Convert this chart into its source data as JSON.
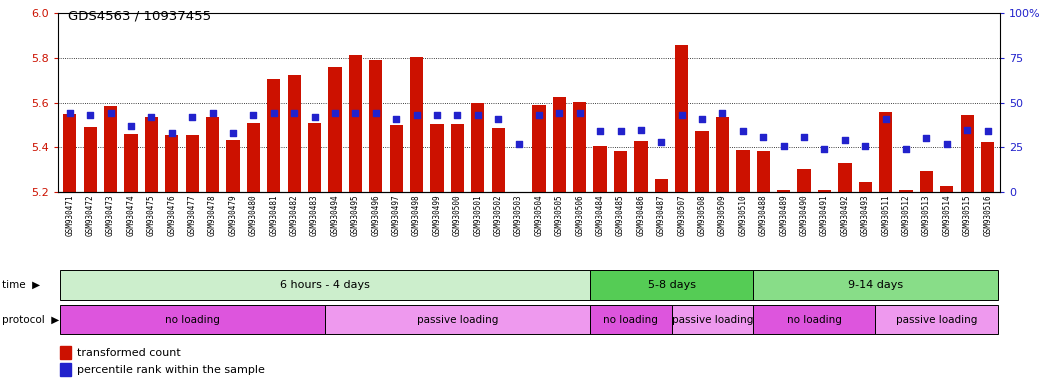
{
  "title": "GDS4563 / 10937455",
  "ylim_left": [
    5.2,
    6.0
  ],
  "ylim_right": [
    0,
    100
  ],
  "yticks_left": [
    5.2,
    5.4,
    5.6,
    5.8,
    6.0
  ],
  "yticks_right": [
    0,
    25,
    50,
    75,
    100
  ],
  "ybaseline": 5.2,
  "bar_color": "#CC1100",
  "dot_color": "#2222CC",
  "samples": [
    "GSM930471",
    "GSM930472",
    "GSM930473",
    "GSM930474",
    "GSM930475",
    "GSM930476",
    "GSM930477",
    "GSM930478",
    "GSM930479",
    "GSM930480",
    "GSM930481",
    "GSM930482",
    "GSM930483",
    "GSM930494",
    "GSM930495",
    "GSM930496",
    "GSM930497",
    "GSM930498",
    "GSM930499",
    "GSM930500",
    "GSM930501",
    "GSM930502",
    "GSM930503",
    "GSM930504",
    "GSM930505",
    "GSM930506",
    "GSM930484",
    "GSM930485",
    "GSM930486",
    "GSM930487",
    "GSM930507",
    "GSM930508",
    "GSM930509",
    "GSM930510",
    "GSM930488",
    "GSM930489",
    "GSM930490",
    "GSM930491",
    "GSM930492",
    "GSM930493",
    "GSM930511",
    "GSM930512",
    "GSM930513",
    "GSM930514",
    "GSM930515",
    "GSM930516"
  ],
  "bar_values": [
    5.55,
    5.49,
    5.585,
    5.46,
    5.535,
    5.455,
    5.455,
    5.535,
    5.435,
    5.51,
    5.705,
    5.725,
    5.51,
    5.76,
    5.815,
    5.79,
    5.5,
    5.805,
    5.505,
    5.505,
    5.6,
    5.485,
    5.2,
    5.59,
    5.625,
    5.605,
    5.405,
    5.385,
    5.43,
    5.26,
    5.86,
    5.475,
    5.535,
    5.39,
    5.385,
    5.21,
    5.305,
    5.21,
    5.33,
    5.245,
    5.56,
    5.21,
    5.295,
    5.225,
    5.545,
    5.425
  ],
  "percentile_values": [
    44,
    43,
    44,
    37,
    42,
    33,
    42,
    44,
    33,
    43,
    44,
    44,
    42,
    44,
    44,
    44,
    41,
    43,
    43,
    43,
    43,
    41,
    27,
    43,
    44,
    44,
    34,
    34,
    35,
    28,
    43,
    41,
    44,
    34,
    31,
    26,
    31,
    24,
    29,
    26,
    41,
    24,
    30,
    27,
    35,
    34
  ],
  "time_groups": [
    {
      "label": "6 hours - 4 days",
      "start": 0,
      "end": 26,
      "color": "#CCEECC"
    },
    {
      "label": "5-8 days",
      "start": 26,
      "end": 34,
      "color": "#55CC55"
    },
    {
      "label": "9-14 days",
      "start": 34,
      "end": 46,
      "color": "#88DD88"
    }
  ],
  "protocol_groups": [
    {
      "label": "no loading",
      "start": 0,
      "end": 13,
      "color": "#DD55DD"
    },
    {
      "label": "passive loading",
      "start": 13,
      "end": 26,
      "color": "#EE99EE"
    },
    {
      "label": "no loading",
      "start": 26,
      "end": 30,
      "color": "#DD55DD"
    },
    {
      "label": "passive loading",
      "start": 30,
      "end": 34,
      "color": "#EE99EE"
    },
    {
      "label": "no loading",
      "start": 34,
      "end": 40,
      "color": "#DD55DD"
    },
    {
      "label": "passive loading",
      "start": 40,
      "end": 46,
      "color": "#EE99EE"
    }
  ],
  "legend_bar_label": "transformed count",
  "legend_dot_label": "percentile rank within the sample",
  "bg_color": "#FFFFFF",
  "axis_label_color_left": "#CC1100",
  "axis_label_color_right": "#2222CC",
  "grid_color": "#000000",
  "xtick_bg": "#DDDDDD"
}
